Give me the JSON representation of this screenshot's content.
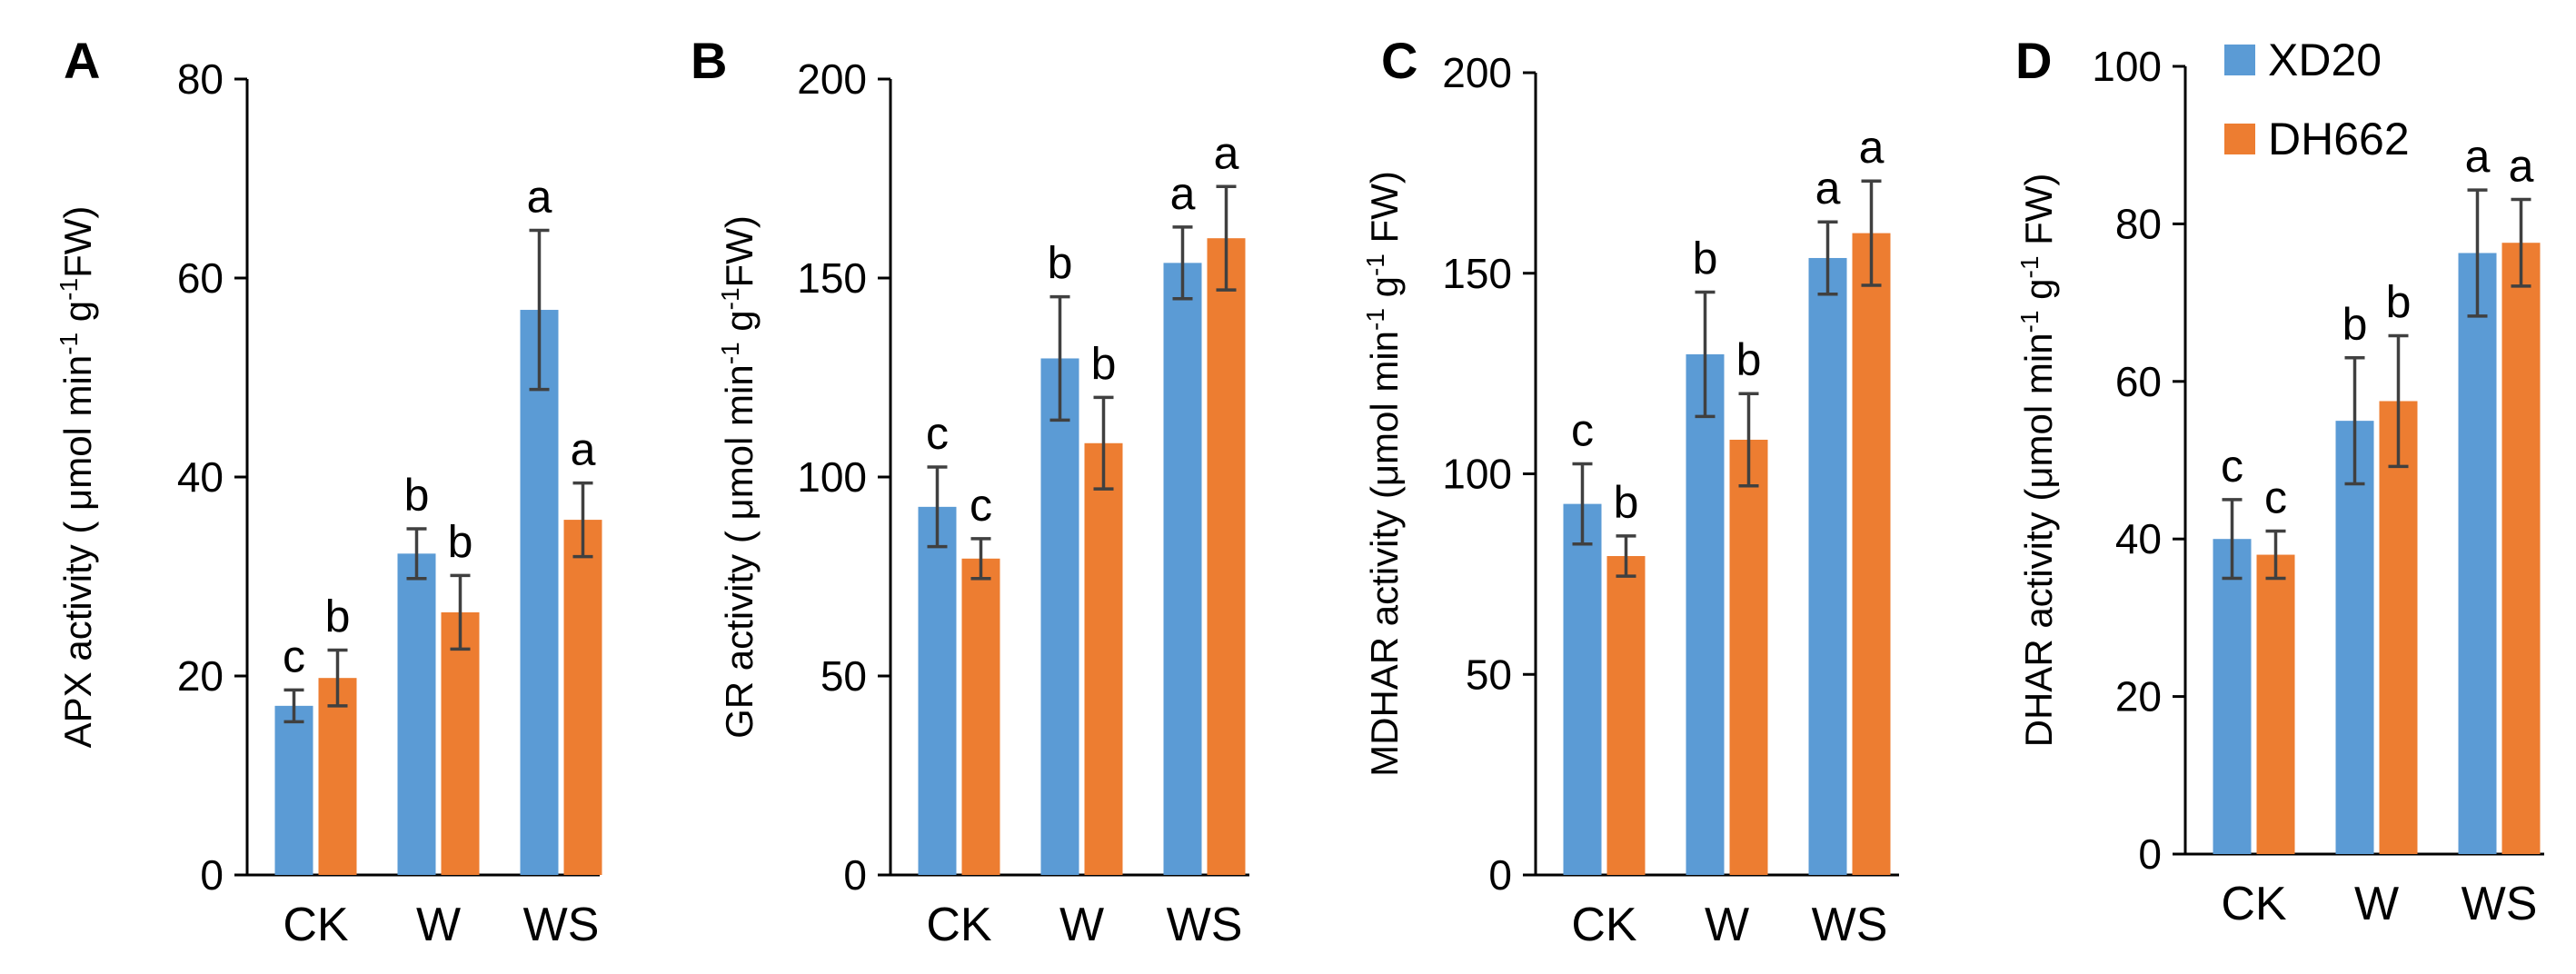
{
  "legend": {
    "position": "top-right",
    "entries": [
      {
        "name": "XD20",
        "color": "#5B9BD5"
      },
      {
        "name": "DH662",
        "color": "#ED7D31"
      }
    ]
  },
  "chart_data": [
    {
      "type": "bar",
      "panel": "A",
      "ylabel_main": "APX activity ( μmol min",
      "ylabel_sup1": "-1",
      "ylabel_mid": " g",
      "ylabel_sup2": "-1",
      "ylabel_end": "FW)",
      "categories": [
        "CK",
        "W",
        "WS"
      ],
      "ylim": [
        0,
        80
      ],
      "yticks": [
        "0",
        "20",
        "40",
        "60",
        "80"
      ],
      "grid": false,
      "series": [
        {
          "name": "XD20",
          "values": [
            17,
            32.3,
            56.8
          ],
          "errors": [
            1.6,
            2.5,
            8
          ],
          "labels": [
            "c",
            "b",
            "a"
          ]
        },
        {
          "name": "DH662",
          "values": [
            19.8,
            26.4,
            35.7
          ],
          "errors": [
            2.8,
            3.7,
            3.7
          ],
          "labels": [
            "b",
            "b",
            "a"
          ]
        }
      ]
    },
    {
      "type": "bar",
      "panel": "B",
      "ylabel_main": "GR activity ( μmol min",
      "ylabel_sup1": "-1",
      "ylabel_mid": " g",
      "ylabel_sup2": "-1",
      "ylabel_end": "FW)",
      "categories": [
        "CK",
        "W",
        "WS"
      ],
      "ylim": [
        0,
        200
      ],
      "yticks": [
        "0",
        "50",
        "100",
        "150",
        "200"
      ],
      "grid": false,
      "series": [
        {
          "name": "XD20",
          "values": [
            92.5,
            129.8,
            153.8
          ],
          "errors": [
            10,
            15.5,
            9
          ],
          "labels": [
            "c",
            "b",
            "a"
          ]
        },
        {
          "name": "DH662",
          "values": [
            79.5,
            108.5,
            160
          ],
          "errors": [
            5,
            11.5,
            13
          ],
          "labels": [
            "c",
            "b",
            "a"
          ]
        }
      ]
    },
    {
      "type": "bar",
      "panel": "C",
      "ylabel_main": "MDHAR activity (μmol min",
      "ylabel_sup1": "-1",
      "ylabel_mid": " g",
      "ylabel_sup2": "-1",
      "ylabel_end": " FW)",
      "categories": [
        "CK",
        "W",
        "WS"
      ],
      "ylim": [
        0,
        200
      ],
      "yticks": [
        "0",
        "50",
        "100",
        "150",
        "200"
      ],
      "grid": false,
      "series": [
        {
          "name": "XD20",
          "values": [
            92.5,
            129.8,
            153.8
          ],
          "errors": [
            10,
            15.5,
            9
          ],
          "labels": [
            "c",
            "b",
            "a"
          ]
        },
        {
          "name": "DH662",
          "values": [
            79.5,
            108.5,
            160
          ],
          "errors": [
            5,
            11.5,
            13
          ],
          "labels": [
            "b",
            "b",
            "a"
          ]
        }
      ]
    },
    {
      "type": "bar",
      "panel": "D",
      "ylabel_main": "DHAR activity (μmol min",
      "ylabel_sup1": "-1",
      "ylabel_mid": " g",
      "ylabel_sup2": "-1",
      "ylabel_end": " FW)",
      "categories": [
        "CK",
        "W",
        "WS"
      ],
      "ylim": [
        0,
        100
      ],
      "yticks": [
        "0",
        "20",
        "40",
        "60",
        "80",
        "100"
      ],
      "grid": false,
      "series": [
        {
          "name": "XD20",
          "values": [
            40,
            55,
            76.3
          ],
          "errors": [
            5,
            8,
            8
          ],
          "labels": [
            "c",
            "b",
            "a"
          ]
        },
        {
          "name": "DH662",
          "values": [
            38,
            57.5,
            77.6
          ],
          "errors": [
            3,
            8.3,
            5.5
          ],
          "labels": [
            "c",
            "b",
            "a"
          ]
        }
      ]
    }
  ]
}
